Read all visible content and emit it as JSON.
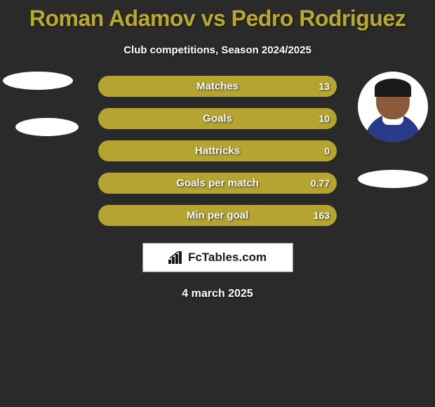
{
  "title": "Roman Adamov vs Pedro Rodriguez",
  "subtitle": "Club competitions, Season 2024/2025",
  "date": "4 march 2025",
  "watermark_text": "FcTables.com",
  "colors": {
    "accent": "#b8a830",
    "bar_bg": "#b5a332",
    "bar_border": "#8a7a20",
    "background": "#2a2a2a",
    "text": "#ffffff"
  },
  "stats": [
    {
      "label": "Matches",
      "left_val": "",
      "right_val": "13",
      "left_pct": 0,
      "right_pct": 100
    },
    {
      "label": "Goals",
      "left_val": "",
      "right_val": "10",
      "left_pct": 0,
      "right_pct": 100
    },
    {
      "label": "Hattricks",
      "left_val": "",
      "right_val": "0",
      "left_pct": 0,
      "right_pct": 100
    },
    {
      "label": "Goals per match",
      "left_val": "",
      "right_val": "0.77",
      "left_pct": 0,
      "right_pct": 100
    },
    {
      "label": "Min per goal",
      "left_val": "",
      "right_val": "163",
      "left_pct": 0,
      "right_pct": 100
    }
  ]
}
